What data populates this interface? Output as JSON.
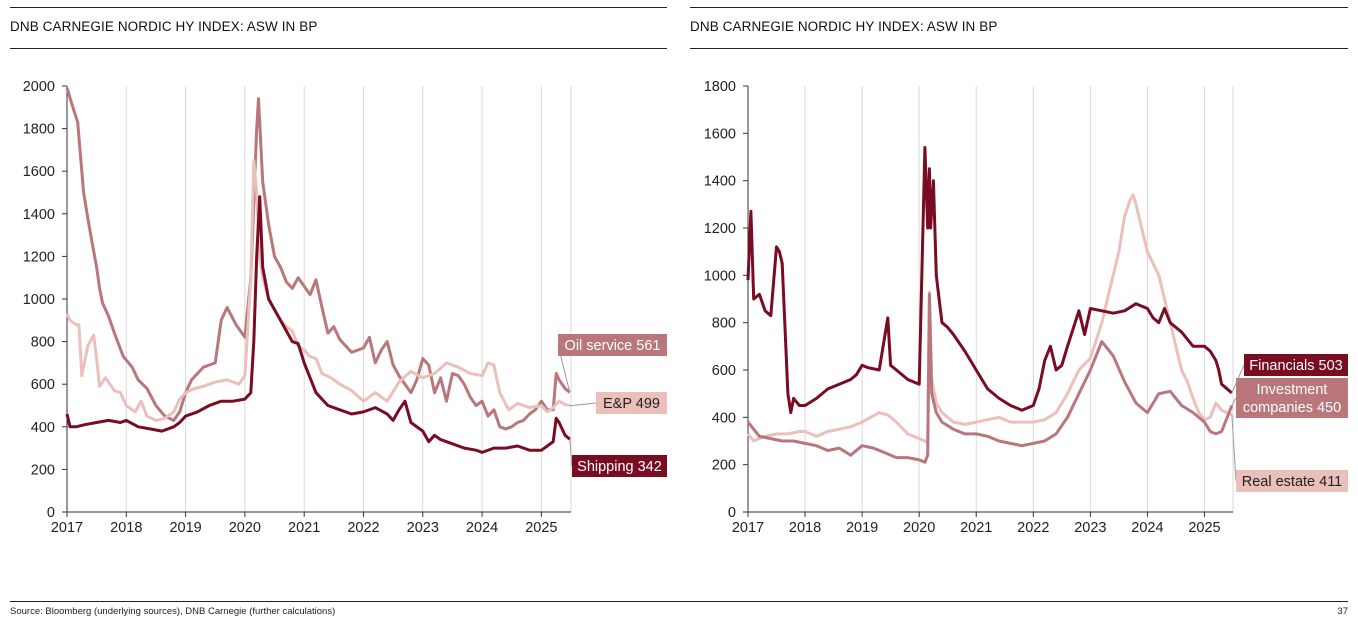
{
  "footer": {
    "source": "Source: Bloomberg (underlying sources), DNB Carnegie (further calculations)",
    "page_number": "37"
  },
  "chart_data": [
    {
      "type": "line",
      "title": "DNB CARNEGIE NORDIC HY INDEX: ASW IN BP",
      "xlabel": "",
      "ylabel": "",
      "xlim": [
        2017,
        2025.5
      ],
      "ylim": [
        0,
        2000
      ],
      "yticks": [
        0,
        200,
        400,
        600,
        800,
        1000,
        1200,
        1400,
        1600,
        1800,
        2000
      ],
      "xticks": [
        "2017",
        "2018",
        "2019",
        "2020",
        "2021",
        "2022",
        "2023",
        "2024",
        "2025"
      ],
      "grid": "vertical",
      "series": [
        {
          "name": "Oil service",
          "label": "Oil service 561",
          "color": "#B9777B",
          "x": [
            2017.0,
            2017.1,
            2017.18,
            2017.22,
            2017.28,
            2017.35,
            2017.42,
            2017.5,
            2017.55,
            2017.6,
            2017.7,
            2017.8,
            2017.95,
            2018.1,
            2018.2,
            2018.35,
            2018.5,
            2018.65,
            2018.8,
            2018.9,
            2019.0,
            2019.1,
            2019.3,
            2019.5,
            2019.6,
            2019.7,
            2019.85,
            2020.0,
            2020.1,
            2020.15,
            2020.2,
            2020.23,
            2020.3,
            2020.4,
            2020.5,
            2020.6,
            2020.7,
            2020.8,
            2020.9,
            2021.0,
            2021.1,
            2021.2,
            2021.3,
            2021.4,
            2021.5,
            2021.6,
            2021.8,
            2022.0,
            2022.1,
            2022.2,
            2022.3,
            2022.4,
            2022.5,
            2022.6,
            2022.7,
            2022.8,
            2022.9,
            2023.0,
            2023.1,
            2023.2,
            2023.3,
            2023.4,
            2023.5,
            2023.6,
            2023.7,
            2023.8,
            2023.9,
            2024.0,
            2024.1,
            2024.2,
            2024.3,
            2024.4,
            2024.5,
            2024.6,
            2024.7,
            2024.8,
            2024.9,
            2025.0,
            2025.1,
            2025.2,
            2025.25,
            2025.3,
            2025.4,
            2025.48
          ],
          "y": [
            1990,
            1900,
            1830,
            1700,
            1500,
            1380,
            1270,
            1150,
            1050,
            980,
            920,
            840,
            730,
            680,
            620,
            580,
            500,
            450,
            430,
            470,
            560,
            620,
            680,
            700,
            900,
            960,
            880,
            820,
            1100,
            1450,
            1800,
            1940,
            1550,
            1350,
            1200,
            1150,
            1080,
            1050,
            1100,
            1060,
            1020,
            1090,
            960,
            840,
            870,
            810,
            750,
            770,
            820,
            700,
            760,
            800,
            690,
            640,
            600,
            560,
            620,
            720,
            690,
            560,
            630,
            520,
            650,
            640,
            600,
            540,
            500,
            520,
            450,
            480,
            400,
            390,
            400,
            420,
            430,
            460,
            480,
            520,
            480,
            480,
            650,
            620,
            580,
            561
          ]
        },
        {
          "name": "E&P",
          "label": "E&P 499",
          "color": "#EBC0BB",
          "x": [
            2017.0,
            2017.05,
            2017.15,
            2017.2,
            2017.25,
            2017.35,
            2017.45,
            2017.5,
            2017.55,
            2017.65,
            2017.8,
            2017.9,
            2018.0,
            2018.15,
            2018.25,
            2018.35,
            2018.5,
            2018.65,
            2018.8,
            2018.9,
            2019.0,
            2019.15,
            2019.3,
            2019.5,
            2019.7,
            2019.9,
            2020.0,
            2020.1,
            2020.15,
            2020.2,
            2020.25,
            2020.3,
            2020.4,
            2020.5,
            2020.6,
            2020.7,
            2020.8,
            2020.9,
            2021.0,
            2021.1,
            2021.2,
            2021.3,
            2021.45,
            2021.6,
            2021.8,
            2022.0,
            2022.2,
            2022.4,
            2022.6,
            2022.8,
            2023.0,
            2023.2,
            2023.4,
            2023.6,
            2023.8,
            2024.0,
            2024.1,
            2024.2,
            2024.3,
            2024.45,
            2024.6,
            2024.8,
            2025.0,
            2025.1,
            2025.2,
            2025.3,
            2025.4,
            2025.48
          ],
          "y": [
            930,
            900,
            880,
            880,
            640,
            780,
            830,
            720,
            590,
            630,
            570,
            560,
            500,
            470,
            520,
            450,
            430,
            440,
            470,
            530,
            560,
            580,
            590,
            610,
            620,
            600,
            640,
            1100,
            1650,
            1500,
            1200,
            1100,
            1000,
            950,
            900,
            870,
            850,
            780,
            760,
            730,
            720,
            650,
            630,
            600,
            570,
            520,
            560,
            520,
            610,
            660,
            630,
            650,
            700,
            680,
            650,
            640,
            700,
            690,
            560,
            480,
            510,
            490,
            500,
            470,
            490,
            520,
            505,
            499
          ]
        },
        {
          "name": "Shipping",
          "label": "Shipping 342",
          "color": "#7A0C22",
          "x": [
            2017.0,
            2017.05,
            2017.15,
            2017.3,
            2017.5,
            2017.7,
            2017.9,
            2018.0,
            2018.2,
            2018.4,
            2018.6,
            2018.8,
            2018.9,
            2019.0,
            2019.2,
            2019.4,
            2019.6,
            2019.8,
            2020.0,
            2020.1,
            2020.15,
            2020.2,
            2020.25,
            2020.3,
            2020.4,
            2020.5,
            2020.6,
            2020.7,
            2020.8,
            2020.9,
            2021.0,
            2021.2,
            2021.4,
            2021.6,
            2021.8,
            2022.0,
            2022.2,
            2022.4,
            2022.5,
            2022.6,
            2022.7,
            2022.8,
            2023.0,
            2023.1,
            2023.2,
            2023.3,
            2023.5,
            2023.7,
            2023.9,
            2024.0,
            2024.2,
            2024.4,
            2024.6,
            2024.8,
            2025.0,
            2025.1,
            2025.2,
            2025.25,
            2025.3,
            2025.4,
            2025.48
          ],
          "y": [
            460,
            400,
            400,
            410,
            420,
            430,
            420,
            430,
            400,
            390,
            380,
            400,
            420,
            450,
            470,
            500,
            520,
            520,
            530,
            560,
            800,
            1200,
            1480,
            1150,
            1000,
            950,
            900,
            850,
            800,
            790,
            700,
            560,
            500,
            480,
            460,
            470,
            490,
            460,
            430,
            480,
            520,
            420,
            380,
            330,
            360,
            340,
            320,
            300,
            290,
            280,
            300,
            300,
            310,
            290,
            290,
            310,
            330,
            440,
            420,
            360,
            342
          ]
        }
      ]
    },
    {
      "type": "line",
      "title": "DNB CARNEGIE NORDIC HY INDEX: ASW IN BP",
      "xlabel": "",
      "ylabel": "",
      "xlim": [
        2017,
        2025.5
      ],
      "ylim": [
        0,
        1800
      ],
      "yticks": [
        0,
        200,
        400,
        600,
        800,
        1000,
        1200,
        1400,
        1600,
        1800
      ],
      "xticks": [
        "2017",
        "2018",
        "2019",
        "2020",
        "2021",
        "2022",
        "2023",
        "2024",
        "2025"
      ],
      "grid": "vertical",
      "series": [
        {
          "name": "Real estate",
          "label": "Real estate 411",
          "color": "#EBC0BB",
          "x": [
            2017.0,
            2017.1,
            2017.3,
            2017.5,
            2017.7,
            2017.9,
            2018.0,
            2018.2,
            2018.4,
            2018.6,
            2018.8,
            2019.0,
            2019.15,
            2019.3,
            2019.45,
            2019.6,
            2019.8,
            2020.0,
            2020.1,
            2020.15,
            2020.18,
            2020.22,
            2020.3,
            2020.4,
            2020.5,
            2020.6,
            2020.8,
            2021.0,
            2021.2,
            2021.4,
            2021.6,
            2021.8,
            2022.0,
            2022.2,
            2022.4,
            2022.6,
            2022.8,
            2023.0,
            2023.2,
            2023.35,
            2023.5,
            2023.6,
            2023.7,
            2023.75,
            2023.8,
            2023.9,
            2024.0,
            2024.1,
            2024.2,
            2024.3,
            2024.4,
            2024.5,
            2024.6,
            2024.7,
            2024.8,
            2024.9,
            2025.0,
            2025.1,
            2025.2,
            2025.3,
            2025.48
          ],
          "y": [
            330,
            300,
            320,
            330,
            330,
            340,
            340,
            320,
            340,
            350,
            360,
            380,
            400,
            420,
            410,
            380,
            330,
            310,
            300,
            290,
            930,
            560,
            460,
            420,
            400,
            380,
            370,
            380,
            390,
            400,
            380,
            380,
            380,
            390,
            420,
            500,
            600,
            650,
            800,
            950,
            1100,
            1250,
            1320,
            1340,
            1300,
            1200,
            1100,
            1050,
            1000,
            900,
            800,
            700,
            600,
            550,
            480,
            420,
            390,
            400,
            460,
            430,
            411
          ]
        },
        {
          "name": "Investment companies",
          "label": "Investment companies 450",
          "color": "#B9777B",
          "x": [
            2017.0,
            2017.2,
            2017.4,
            2017.6,
            2017.8,
            2018.0,
            2018.2,
            2018.4,
            2018.6,
            2018.8,
            2019.0,
            2019.2,
            2019.4,
            2019.6,
            2019.8,
            2020.0,
            2020.1,
            2020.15,
            2020.18,
            2020.22,
            2020.3,
            2020.4,
            2020.6,
            2020.8,
            2021.0,
            2021.2,
            2021.4,
            2021.6,
            2021.8,
            2022.0,
            2022.2,
            2022.4,
            2022.6,
            2022.8,
            2023.0,
            2023.2,
            2023.4,
            2023.6,
            2023.8,
            2024.0,
            2024.2,
            2024.4,
            2024.6,
            2024.8,
            2025.0,
            2025.1,
            2025.2,
            2025.3,
            2025.48
          ],
          "y": [
            380,
            320,
            310,
            300,
            300,
            290,
            280,
            260,
            270,
            240,
            280,
            270,
            250,
            230,
            230,
            220,
            210,
            240,
            920,
            500,
            420,
            380,
            350,
            330,
            330,
            320,
            300,
            290,
            280,
            290,
            300,
            330,
            400,
            500,
            600,
            720,
            660,
            550,
            460,
            420,
            500,
            510,
            450,
            420,
            380,
            340,
            330,
            340,
            450
          ]
        },
        {
          "name": "Financials",
          "label": "Financials 503",
          "color": "#7A0C22",
          "x": [
            2017.0,
            2017.05,
            2017.1,
            2017.2,
            2017.3,
            2017.4,
            2017.5,
            2017.55,
            2017.6,
            2017.7,
            2017.75,
            2017.8,
            2017.9,
            2018.0,
            2018.2,
            2018.4,
            2018.6,
            2018.8,
            2018.9,
            2019.0,
            2019.1,
            2019.3,
            2019.45,
            2019.5,
            2019.6,
            2019.8,
            2020.0,
            2020.1,
            2020.15,
            2020.18,
            2020.2,
            2020.25,
            2020.3,
            2020.35,
            2020.4,
            2020.5,
            2020.6,
            2020.8,
            2021.0,
            2021.2,
            2021.4,
            2021.6,
            2021.8,
            2022.0,
            2022.1,
            2022.2,
            2022.3,
            2022.4,
            2022.5,
            2022.6,
            2022.8,
            2022.9,
            2023.0,
            2023.2,
            2023.4,
            2023.6,
            2023.8,
            2024.0,
            2024.1,
            2024.2,
            2024.3,
            2024.4,
            2024.6,
            2024.8,
            2024.9,
            2025.0,
            2025.1,
            2025.2,
            2025.25,
            2025.3,
            2025.48
          ],
          "y": [
            980,
            1270,
            900,
            920,
            850,
            830,
            1120,
            1100,
            1050,
            500,
            420,
            480,
            450,
            450,
            480,
            520,
            540,
            560,
            580,
            620,
            610,
            600,
            820,
            620,
            600,
            560,
            540,
            1540,
            1200,
            1450,
            1200,
            1400,
            1000,
            900,
            800,
            780,
            750,
            680,
            600,
            520,
            480,
            450,
            430,
            450,
            520,
            640,
            700,
            600,
            620,
            700,
            850,
            750,
            860,
            850,
            840,
            850,
            880,
            860,
            820,
            800,
            860,
            800,
            760,
            700,
            700,
            700,
            680,
            640,
            600,
            540,
            503
          ]
        }
      ]
    }
  ]
}
